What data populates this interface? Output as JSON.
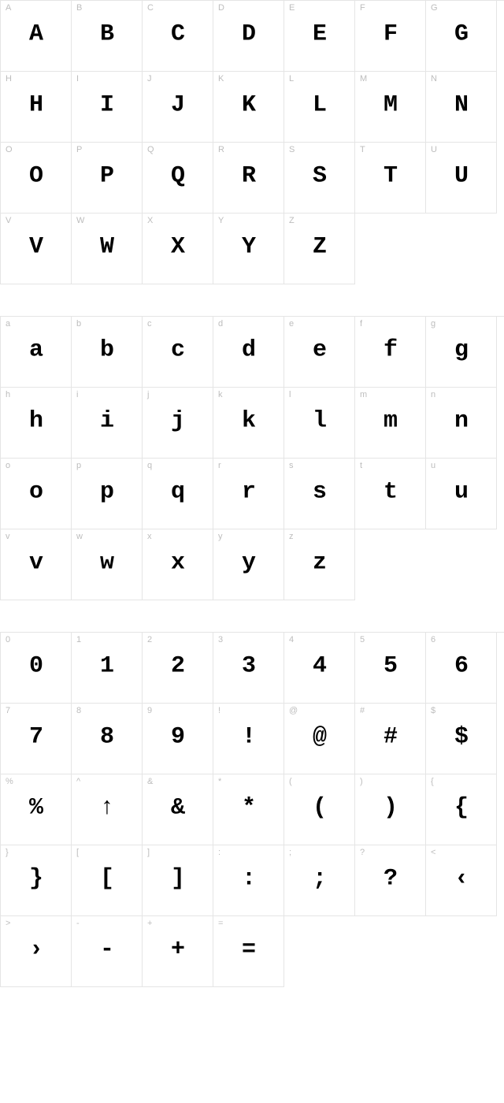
{
  "colors": {
    "background": "#ffffff",
    "border": "#e5e5e5",
    "label": "#bdbdbd",
    "glyph": "#000000"
  },
  "cell": {
    "width": 90,
    "height": 90,
    "label_fontsize": 11,
    "glyph_fontsize": 30,
    "glyph_weight": 900
  },
  "sections": [
    {
      "name": "uppercase",
      "rows": [
        [
          {
            "label": "A",
            "glyph": "A"
          },
          {
            "label": "B",
            "glyph": "B"
          },
          {
            "label": "C",
            "glyph": "C"
          },
          {
            "label": "D",
            "glyph": "D"
          },
          {
            "label": "E",
            "glyph": "E"
          },
          {
            "label": "F",
            "glyph": "F"
          },
          {
            "label": "G",
            "glyph": "G"
          }
        ],
        [
          {
            "label": "H",
            "glyph": "H"
          },
          {
            "label": "I",
            "glyph": "I"
          },
          {
            "label": "J",
            "glyph": "J"
          },
          {
            "label": "K",
            "glyph": "K"
          },
          {
            "label": "L",
            "glyph": "L"
          },
          {
            "label": "M",
            "glyph": "M"
          },
          {
            "label": "N",
            "glyph": "N"
          }
        ],
        [
          {
            "label": "O",
            "glyph": "O"
          },
          {
            "label": "P",
            "glyph": "P"
          },
          {
            "label": "Q",
            "glyph": "Q"
          },
          {
            "label": "R",
            "glyph": "R"
          },
          {
            "label": "S",
            "glyph": "S"
          },
          {
            "label": "T",
            "glyph": "T"
          },
          {
            "label": "U",
            "glyph": "U"
          }
        ],
        [
          {
            "label": "V",
            "glyph": "V"
          },
          {
            "label": "W",
            "glyph": "W"
          },
          {
            "label": "X",
            "glyph": "X"
          },
          {
            "label": "Y",
            "glyph": "Y"
          },
          {
            "label": "Z",
            "glyph": "Z"
          },
          null,
          null
        ]
      ]
    },
    {
      "name": "lowercase",
      "rows": [
        [
          {
            "label": "a",
            "glyph": "a"
          },
          {
            "label": "b",
            "glyph": "b"
          },
          {
            "label": "c",
            "glyph": "c"
          },
          {
            "label": "d",
            "glyph": "d"
          },
          {
            "label": "e",
            "glyph": "e"
          },
          {
            "label": "f",
            "glyph": "f"
          },
          {
            "label": "g",
            "glyph": "g"
          }
        ],
        [
          {
            "label": "h",
            "glyph": "h"
          },
          {
            "label": "i",
            "glyph": "i"
          },
          {
            "label": "j",
            "glyph": "j"
          },
          {
            "label": "k",
            "glyph": "k"
          },
          {
            "label": "l",
            "glyph": "l"
          },
          {
            "label": "m",
            "glyph": "m"
          },
          {
            "label": "n",
            "glyph": "n"
          }
        ],
        [
          {
            "label": "o",
            "glyph": "o"
          },
          {
            "label": "p",
            "glyph": "p"
          },
          {
            "label": "q",
            "glyph": "q"
          },
          {
            "label": "r",
            "glyph": "r"
          },
          {
            "label": "s",
            "glyph": "s"
          },
          {
            "label": "t",
            "glyph": "t"
          },
          {
            "label": "u",
            "glyph": "u"
          }
        ],
        [
          {
            "label": "v",
            "glyph": "v"
          },
          {
            "label": "w",
            "glyph": "w"
          },
          {
            "label": "x",
            "glyph": "x"
          },
          {
            "label": "y",
            "glyph": "y"
          },
          {
            "label": "z",
            "glyph": "z"
          },
          null,
          null
        ]
      ]
    },
    {
      "name": "digits-symbols",
      "rows": [
        [
          {
            "label": "0",
            "glyph": "0"
          },
          {
            "label": "1",
            "glyph": "1"
          },
          {
            "label": "2",
            "glyph": "2"
          },
          {
            "label": "3",
            "glyph": "3"
          },
          {
            "label": "4",
            "glyph": "4"
          },
          {
            "label": "5",
            "glyph": "5"
          },
          {
            "label": "6",
            "glyph": "6"
          }
        ],
        [
          {
            "label": "7",
            "glyph": "7"
          },
          {
            "label": "8",
            "glyph": "8"
          },
          {
            "label": "9",
            "glyph": "9"
          },
          {
            "label": "!",
            "glyph": "!"
          },
          {
            "label": "@",
            "glyph": "@"
          },
          {
            "label": "#",
            "glyph": "#"
          },
          {
            "label": "$",
            "glyph": "$"
          }
        ],
        [
          {
            "label": "%",
            "glyph": "%"
          },
          {
            "label": "^",
            "glyph": "↑"
          },
          {
            "label": "&",
            "glyph": "&"
          },
          {
            "label": "*",
            "glyph": "*"
          },
          {
            "label": "(",
            "glyph": "("
          },
          {
            "label": ")",
            "glyph": ")"
          },
          {
            "label": "{",
            "glyph": "{"
          }
        ],
        [
          {
            "label": "}",
            "glyph": "}"
          },
          {
            "label": "[",
            "glyph": "["
          },
          {
            "label": "]",
            "glyph": "]"
          },
          {
            "label": ":",
            "glyph": ":"
          },
          {
            "label": ";",
            "glyph": ";"
          },
          {
            "label": "?",
            "glyph": "?"
          },
          {
            "label": "<",
            "glyph": "‹"
          }
        ],
        [
          {
            "label": ">",
            "glyph": "›"
          },
          {
            "label": "-",
            "glyph": "-"
          },
          {
            "label": "+",
            "glyph": "+"
          },
          {
            "label": "=",
            "glyph": "="
          },
          null,
          null,
          null
        ]
      ]
    }
  ]
}
